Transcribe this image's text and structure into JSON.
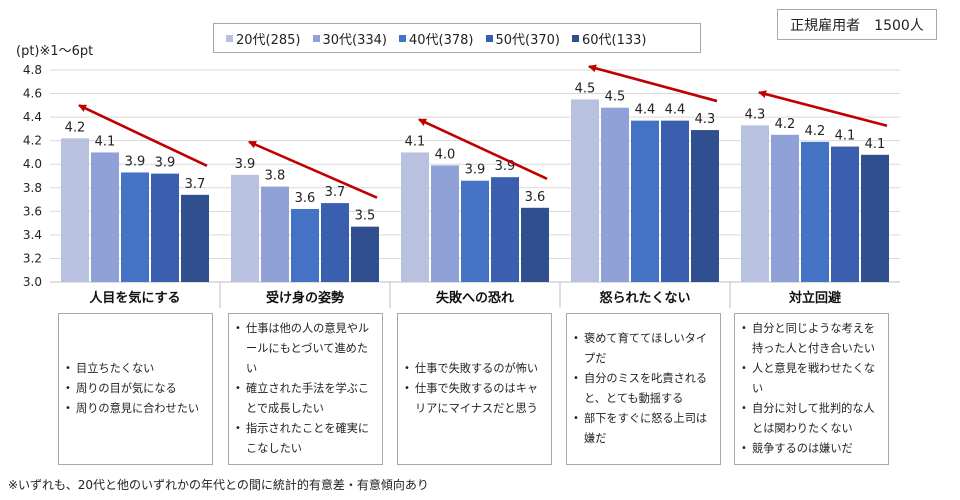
{
  "chart_data": {
    "type": "bar",
    "unit_label": "(pt)※1～6pt",
    "badge": "正規雇用者　1500人",
    "ylim": [
      3.0,
      4.8
    ],
    "yticks": [
      "3.0",
      "3.2",
      "3.4",
      "3.6",
      "3.8",
      "4.0",
      "4.2",
      "4.4",
      "4.6",
      "4.8"
    ],
    "categories": [
      "人目を気にする",
      "受け身の姿勢",
      "失敗への恐れ",
      "怒られたくない",
      "対立回避"
    ],
    "series": [
      {
        "name": "20代(285)",
        "color": "#b8c2e0",
        "values": [
          4.22,
          3.91,
          4.1,
          4.55,
          4.33
        ],
        "labels": [
          "4.2",
          "3.9",
          "4.1",
          "4.5",
          "4.3"
        ]
      },
      {
        "name": "30代(334)",
        "color": "#8fa1d6",
        "values": [
          4.1,
          3.81,
          3.99,
          4.48,
          4.25
        ],
        "labels": [
          "4.1",
          "3.8",
          "4.0",
          "4.5",
          "4.2"
        ]
      },
      {
        "name": "40代(378)",
        "color": "#4472c4",
        "values": [
          3.93,
          3.62,
          3.86,
          4.37,
          4.19
        ],
        "labels": [
          "3.9",
          "3.6",
          "3.9",
          "4.4",
          "4.2"
        ]
      },
      {
        "name": "50代(370)",
        "color": "#3a5fae",
        "values": [
          3.92,
          3.67,
          3.89,
          4.37,
          4.15
        ],
        "labels": [
          "3.9",
          "3.7",
          "3.9",
          "4.4",
          "4.1"
        ]
      },
      {
        "name": "60代(133)",
        "color": "#2f4f8f",
        "values": [
          3.74,
          3.47,
          3.63,
          4.29,
          4.08
        ],
        "labels": [
          "3.7",
          "3.5",
          "3.6",
          "4.3",
          "4.1"
        ]
      }
    ],
    "annotations": "各カテゴリに60代から20代へ向かう赤い矢印"
  },
  "notes": [
    [
      "目立ちたくない",
      "周りの目が気になる",
      "周りの意見に合わせたい"
    ],
    [
      "仕事は他の人の意見やルールにもとづいて進めたい",
      "確立された手法を学ぶことで成長したい",
      "指示されたことを確実にこなしたい"
    ],
    [
      "仕事で失敗するのが怖い",
      "仕事で失敗するのはキャリアにマイナスだと思う"
    ],
    [
      "褒めて育ててほしいタイプだ",
      "自分のミスを叱責されると、とても動揺する",
      "部下をすぐに怒る上司は嫌だ"
    ],
    [
      "自分と同じような考えを持った人と付き合いたい",
      "人と意見を戦わせたくない",
      "自分に対して批判的な人とは関わりたくない",
      "競争するのは嫌いだ"
    ]
  ],
  "footnote": "※いずれも、20代と他のいずれかの年代との間に統計的有意差・有意傾向あり",
  "colors": {
    "arrow": "#c00000",
    "grid": "#d9d9d9",
    "axis": "#bfbfbf"
  }
}
